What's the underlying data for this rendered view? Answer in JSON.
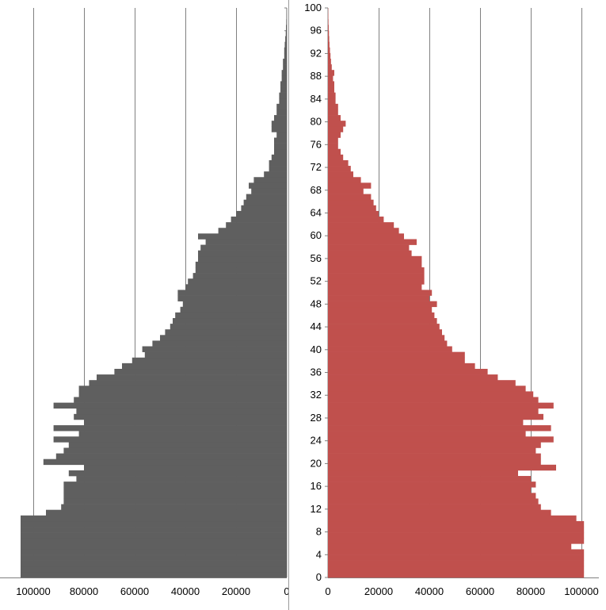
{
  "chart_data": [
    {
      "type": "bar",
      "orientation": "horizontal",
      "reversed_x": true,
      "color": "#5f5f5f",
      "xlim": [
        0,
        110000
      ],
      "xticks": [
        100000,
        80000,
        60000,
        40000,
        20000,
        0
      ],
      "xtick_labels": [
        "100000",
        "80000",
        "60000",
        "40000",
        "20000",
        "0"
      ],
      "ylim": [
        0,
        100
      ],
      "grid": true,
      "ages": [
        0,
        1,
        2,
        3,
        4,
        5,
        6,
        7,
        8,
        9,
        10,
        11,
        12,
        13,
        14,
        15,
        16,
        17,
        18,
        19,
        20,
        21,
        22,
        23,
        24,
        25,
        26,
        27,
        28,
        29,
        30,
        31,
        32,
        33,
        34,
        35,
        36,
        37,
        38,
        39,
        40,
        41,
        42,
        43,
        44,
        45,
        46,
        47,
        48,
        49,
        50,
        51,
        52,
        53,
        54,
        55,
        56,
        57,
        58,
        59,
        60,
        61,
        62,
        63,
        64,
        65,
        66,
        67,
        68,
        69,
        70,
        71,
        72,
        73,
        74,
        75,
        76,
        77,
        78,
        79,
        80,
        81,
        82,
        83,
        84,
        85,
        86,
        87,
        88,
        89,
        90,
        91,
        92,
        93,
        94,
        95,
        96,
        97,
        98,
        99,
        100
      ],
      "values": [
        105000,
        105000,
        105000,
        105000,
        105000,
        105000,
        105000,
        105000,
        105000,
        105000,
        105000,
        95000,
        89000,
        88000,
        88000,
        88000,
        88000,
        83000,
        86000,
        80000,
        96000,
        91000,
        88000,
        86000,
        92000,
        82000,
        92000,
        80000,
        84000,
        83000,
        92000,
        84000,
        82000,
        82000,
        78000,
        75000,
        68000,
        65000,
        61000,
        56000,
        57000,
        53000,
        50000,
        48000,
        46000,
        45000,
        44000,
        42000,
        41000,
        43000,
        43000,
        40000,
        39000,
        37000,
        36000,
        36000,
        35000,
        35000,
        34000,
        32000,
        35000,
        27000,
        24000,
        22000,
        20000,
        18000,
        17000,
        16000,
        14000,
        15000,
        13000,
        9000,
        7000,
        7000,
        6000,
        5000,
        5000,
        5000,
        4000,
        6000,
        6000,
        5000,
        4000,
        4000,
        3000,
        3000,
        2500,
        2500,
        2000,
        2000,
        1500,
        1500,
        1000,
        1000,
        800,
        600,
        400,
        300,
        200,
        150,
        100
      ]
    },
    {
      "type": "bar",
      "orientation": "horizontal",
      "color": "#c0504d",
      "xlim": [
        0,
        105000
      ],
      "xticks": [
        0,
        20000,
        40000,
        60000,
        80000,
        100000
      ],
      "xtick_labels": [
        "0",
        "20000",
        "40000",
        "60000",
        "80000",
        "100000"
      ],
      "ylim": [
        0,
        100
      ],
      "yticks": [
        0,
        4,
        8,
        12,
        16,
        20,
        24,
        28,
        32,
        36,
        40,
        44,
        48,
        52,
        56,
        60,
        64,
        68,
        72,
        76,
        80,
        84,
        88,
        92,
        96,
        100
      ],
      "ytick_labels": [
        "0",
        "4",
        "8",
        "12",
        "16",
        "20",
        "24",
        "28",
        "32",
        "36",
        "40",
        "44",
        "48",
        "52",
        "56",
        "60",
        "64",
        "68",
        "72",
        "76",
        "80",
        "84",
        "88",
        "92",
        "96",
        "100"
      ],
      "grid": true,
      "ages": [
        0,
        1,
        2,
        3,
        4,
        5,
        6,
        7,
        8,
        9,
        10,
        11,
        12,
        13,
        14,
        15,
        16,
        17,
        18,
        19,
        20,
        21,
        22,
        23,
        24,
        25,
        26,
        27,
        28,
        29,
        30,
        31,
        32,
        33,
        34,
        35,
        36,
        37,
        38,
        39,
        40,
        41,
        42,
        43,
        44,
        45,
        46,
        47,
        48,
        49,
        50,
        51,
        52,
        53,
        54,
        55,
        56,
        57,
        58,
        59,
        60,
        61,
        62,
        63,
        64,
        65,
        66,
        67,
        68,
        69,
        70,
        71,
        72,
        73,
        74,
        75,
        76,
        77,
        78,
        79,
        80,
        81,
        82,
        83,
        84,
        85,
        86,
        87,
        88,
        89,
        90,
        91,
        92,
        93,
        94,
        95,
        96,
        97,
        98,
        99,
        100
      ],
      "values": [
        101000,
        101000,
        101000,
        101000,
        101000,
        96000,
        101000,
        101000,
        101000,
        101000,
        98000,
        88000,
        84000,
        83000,
        82000,
        80000,
        82000,
        80000,
        75000,
        90000,
        84000,
        84000,
        82000,
        84000,
        89000,
        78000,
        88000,
        77000,
        85000,
        83000,
        89000,
        83000,
        81000,
        78000,
        74000,
        67000,
        63000,
        58000,
        54000,
        54000,
        49000,
        47000,
        46000,
        45000,
        44000,
        43000,
        42000,
        41000,
        43000,
        40000,
        41000,
        37000,
        38000,
        38000,
        38000,
        37000,
        37000,
        33000,
        32000,
        35000,
        30000,
        28000,
        26000,
        22000,
        20000,
        19000,
        18000,
        17000,
        14000,
        17000,
        13000,
        10000,
        9000,
        8000,
        6000,
        5000,
        4000,
        4000,
        5000,
        6000,
        7000,
        5000,
        4000,
        4000,
        3000,
        3000,
        2500,
        2500,
        2000,
        2500,
        1500,
        1200,
        1000,
        800,
        600,
        500,
        400,
        300,
        200,
        150,
        100
      ]
    }
  ]
}
